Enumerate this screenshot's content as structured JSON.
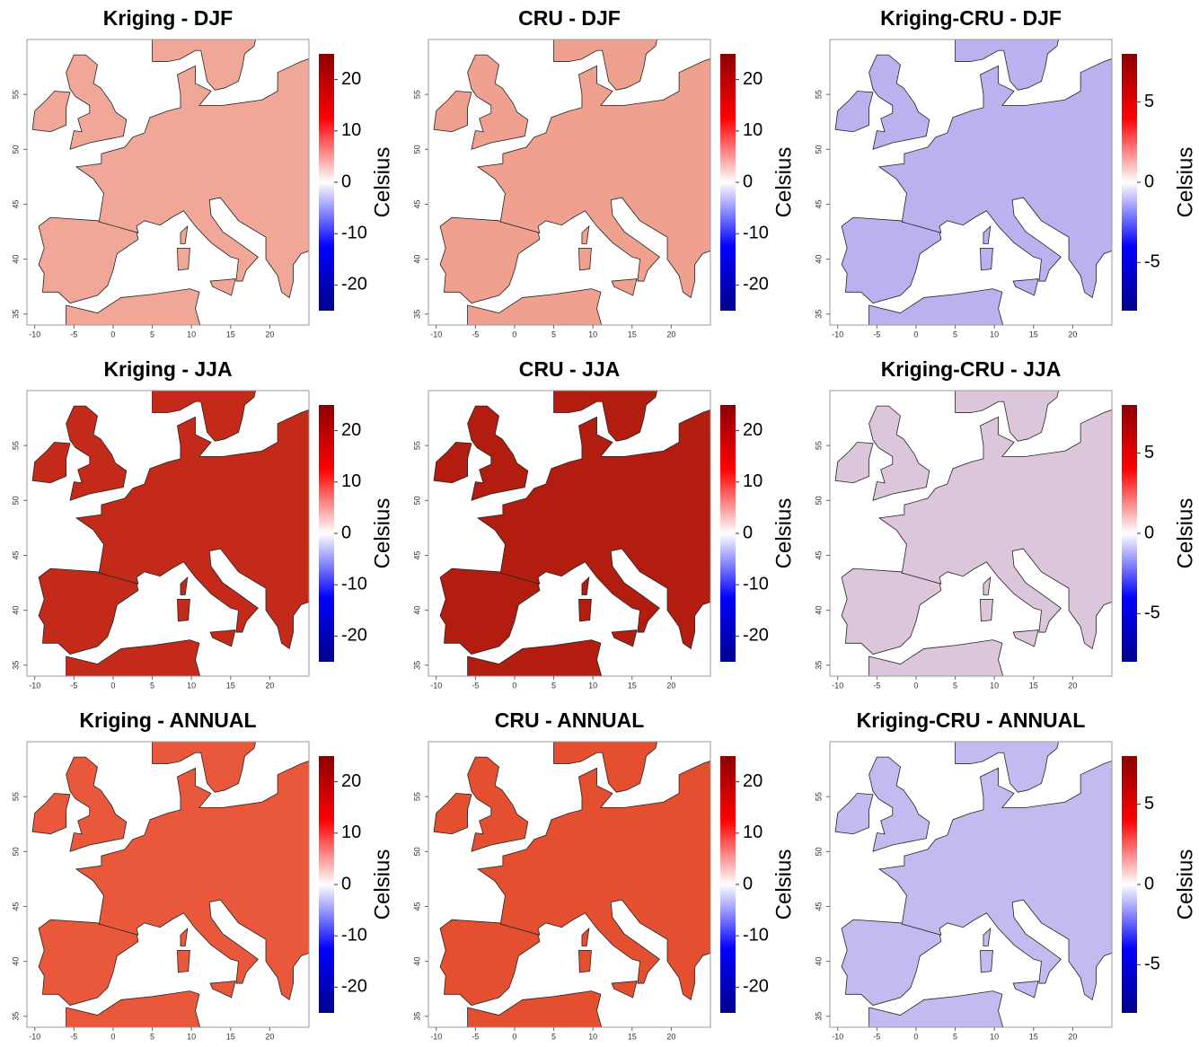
{
  "panels": [
    {
      "title": "Kriging - DJF",
      "xlim": [
        -11,
        25
      ],
      "ylim": [
        34,
        60
      ],
      "xticks": [
        -10,
        -5,
        0,
        5,
        10,
        15,
        20
      ],
      "yticks": [
        35,
        40,
        45,
        50,
        55
      ],
      "map_color": "#f1a797",
      "colorbar": {
        "lim": [
          -25,
          25
        ],
        "ticks": [
          -20,
          -10,
          0,
          10,
          20
        ],
        "label": "Celsius",
        "colors": [
          "#00008b",
          "#0000ff",
          "#ffffff",
          "#ff0000",
          "#8b0000"
        ]
      }
    },
    {
      "title": "CRU - DJF",
      "xlim": [
        -11,
        25
      ],
      "ylim": [
        34,
        60
      ],
      "xticks": [
        -10,
        -5,
        0,
        5,
        10,
        15,
        20
      ],
      "yticks": [
        35,
        40,
        45,
        50,
        55
      ],
      "map_color": "#f0a08f",
      "colorbar": {
        "lim": [
          -25,
          25
        ],
        "ticks": [
          -20,
          -10,
          0,
          10,
          20
        ],
        "label": "Celsius",
        "colors": [
          "#00008b",
          "#0000ff",
          "#ffffff",
          "#ff0000",
          "#8b0000"
        ]
      }
    },
    {
      "title": "Kriging-CRU - DJF",
      "xlim": [
        -11,
        25
      ],
      "ylim": [
        34,
        60
      ],
      "xticks": [
        -10,
        -5,
        0,
        5,
        10,
        15,
        20
      ],
      "yticks": [
        35,
        40,
        45,
        50,
        55
      ],
      "map_color": "#bab2ef",
      "colorbar": {
        "lim": [
          -8,
          8
        ],
        "ticks": [
          -5,
          0,
          5
        ],
        "label": "Celsius",
        "colors": [
          "#00008b",
          "#0000ff",
          "#ffffff",
          "#ff0000",
          "#8b0000"
        ]
      }
    },
    {
      "title": "Kriging - JJA",
      "xlim": [
        -11,
        25
      ],
      "ylim": [
        34,
        60
      ],
      "xticks": [
        -10,
        -5,
        0,
        5,
        10,
        15,
        20
      ],
      "yticks": [
        35,
        40,
        45,
        50,
        55
      ],
      "map_color": "#c42a1a",
      "colorbar": {
        "lim": [
          -25,
          25
        ],
        "ticks": [
          -20,
          -10,
          0,
          10,
          20
        ],
        "label": "Celsius",
        "colors": [
          "#00008b",
          "#0000ff",
          "#ffffff",
          "#ff0000",
          "#8b0000"
        ]
      }
    },
    {
      "title": "CRU - JJA",
      "xlim": [
        -11,
        25
      ],
      "ylim": [
        34,
        60
      ],
      "xticks": [
        -10,
        -5,
        0,
        5,
        10,
        15,
        20
      ],
      "yticks": [
        35,
        40,
        45,
        50,
        55
      ],
      "map_color": "#b21d10",
      "colorbar": {
        "lim": [
          -25,
          25
        ],
        "ticks": [
          -20,
          -10,
          0,
          10,
          20
        ],
        "label": "Celsius",
        "colors": [
          "#00008b",
          "#0000ff",
          "#ffffff",
          "#ff0000",
          "#8b0000"
        ]
      }
    },
    {
      "title": "Kriging-CRU - JJA",
      "xlim": [
        -11,
        25
      ],
      "ylim": [
        34,
        60
      ],
      "xticks": [
        -10,
        -5,
        0,
        5,
        10,
        15,
        20
      ],
      "yticks": [
        35,
        40,
        45,
        50,
        55
      ],
      "map_color": "#dcc6dc",
      "colorbar": {
        "lim": [
          -8,
          8
        ],
        "ticks": [
          -5,
          0,
          5
        ],
        "label": "Celsius",
        "colors": [
          "#00008b",
          "#0000ff",
          "#ffffff",
          "#ff0000",
          "#8b0000"
        ]
      }
    },
    {
      "title": "Kriging - ANNUAL",
      "xlim": [
        -11,
        25
      ],
      "ylim": [
        34,
        60
      ],
      "xticks": [
        -10,
        -5,
        0,
        5,
        10,
        15,
        20
      ],
      "yticks": [
        35,
        40,
        45,
        50,
        55
      ],
      "map_color": "#e9583a",
      "colorbar": {
        "lim": [
          -25,
          25
        ],
        "ticks": [
          -20,
          -10,
          0,
          10,
          20
        ],
        "label": "Celsius",
        "colors": [
          "#00008b",
          "#0000ff",
          "#ffffff",
          "#ff0000",
          "#8b0000"
        ]
      }
    },
    {
      "title": "CRU - ANNUAL",
      "xlim": [
        -11,
        25
      ],
      "ylim": [
        34,
        60
      ],
      "xticks": [
        -10,
        -5,
        0,
        5,
        10,
        15,
        20
      ],
      "yticks": [
        35,
        40,
        45,
        50,
        55
      ],
      "map_color": "#e4502f",
      "colorbar": {
        "lim": [
          -25,
          25
        ],
        "ticks": [
          -20,
          -10,
          0,
          10,
          20
        ],
        "label": "Celsius",
        "colors": [
          "#00008b",
          "#0000ff",
          "#ffffff",
          "#ff0000",
          "#8b0000"
        ]
      }
    },
    {
      "title": "Kriging-CRU - ANNUAL",
      "xlim": [
        -11,
        25
      ],
      "ylim": [
        34,
        60
      ],
      "xticks": [
        -10,
        -5,
        0,
        5,
        10,
        15,
        20
      ],
      "yticks": [
        35,
        40,
        45,
        50,
        55
      ],
      "map_color": "#c3bbef",
      "colorbar": {
        "lim": [
          -8,
          8
        ],
        "ticks": [
          -5,
          0,
          5
        ],
        "label": "Celsius",
        "colors": [
          "#00008b",
          "#0000ff",
          "#ffffff",
          "#ff0000",
          "#8b0000"
        ]
      }
    }
  ]
}
